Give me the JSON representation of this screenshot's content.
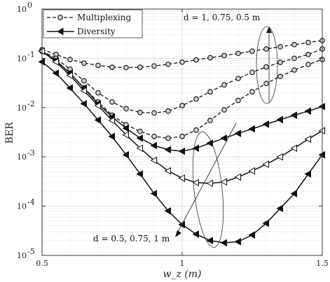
{
  "chart_data": {
    "type": "line",
    "xlabel": "w_z (m)",
    "ylabel": "BER",
    "xlim": [
      0.5,
      1.5
    ],
    "ylim": [
      1e-05,
      1
    ],
    "yscale": "log",
    "grid": true,
    "legend_position": "top-left",
    "x_ticks": [
      "0.5",
      "1",
      "1.5"
    ],
    "y_ticks": [
      {
        "value": 1e-05,
        "base": "10",
        "exp": "-5"
      },
      {
        "value": 0.0001,
        "base": "10",
        "exp": "-4"
      },
      {
        "value": 0.001,
        "base": "10",
        "exp": "-3"
      },
      {
        "value": 0.01,
        "base": "10",
        "exp": "-2"
      },
      {
        "value": 0.1,
        "base": "10",
        "exp": "-1"
      },
      {
        "value": 1,
        "base": "10",
        "exp": "0"
      }
    ],
    "legend": [
      {
        "label": "Multiplexing",
        "style": "dashed",
        "marker": "circle"
      },
      {
        "label": "Diversity",
        "style": "solid",
        "marker": "triangle-left"
      }
    ],
    "annotations": [
      {
        "text": "d = 1, 0.75, 0.5 m"
      },
      {
        "text": "d = 0.5, 0.75, 1 m"
      }
    ],
    "x": [
      0.5,
      0.55,
      0.6,
      0.65,
      0.7,
      0.75,
      0.8,
      0.85,
      0.9,
      0.95,
      1.0,
      1.05,
      1.1,
      1.15,
      1.2,
      1.25,
      1.3,
      1.35,
      1.4,
      1.45,
      1.5
    ],
    "series": [
      {
        "group": "Multiplexing",
        "style": "dashed",
        "marker": "circle",
        "filled": false,
        "d": "1",
        "values": [
          0.15,
          0.12,
          0.095,
          0.08,
          0.072,
          0.066,
          0.065,
          0.066,
          0.07,
          0.076,
          0.084,
          0.093,
          0.103,
          0.114,
          0.126,
          0.14,
          0.155,
          0.172,
          0.19,
          0.21,
          0.23
        ]
      },
      {
        "group": "Multiplexing",
        "style": "dashed",
        "marker": "circle",
        "filled": false,
        "d": "0.75",
        "values": [
          0.14,
          0.1,
          0.06,
          0.035,
          0.02,
          0.013,
          0.0095,
          0.008,
          0.0078,
          0.0085,
          0.011,
          0.015,
          0.021,
          0.029,
          0.039,
          0.052,
          0.067,
          0.083,
          0.1,
          0.12,
          0.155
        ]
      },
      {
        "group": "Multiplexing",
        "style": "dashed",
        "marker": "circle",
        "filled": false,
        "d": "0.5",
        "values": [
          0.14,
          0.09,
          0.05,
          0.025,
          0.013,
          0.007,
          0.0045,
          0.0033,
          0.0026,
          0.0024,
          0.0026,
          0.0035,
          0.0055,
          0.009,
          0.014,
          0.021,
          0.031,
          0.043,
          0.058,
          0.075,
          0.095
        ]
      },
      {
        "group": "Diversity",
        "style": "solid",
        "marker": "triangle-left",
        "filled": true,
        "d": "1",
        "values": [
          0.14,
          0.09,
          0.05,
          0.025,
          0.012,
          0.0065,
          0.0038,
          0.0024,
          0.0017,
          0.0014,
          0.0013,
          0.0015,
          0.0019,
          0.0024,
          0.003,
          0.0037,
          0.0046,
          0.0057,
          0.007,
          0.0085,
          0.0105
        ]
      },
      {
        "group": "Diversity",
        "style": "solid",
        "marker": "triangle-left",
        "filled": false,
        "d": "0.75",
        "values": [
          0.14,
          0.085,
          0.045,
          0.022,
          0.011,
          0.0055,
          0.0028,
          0.0015,
          0.00085,
          0.00052,
          0.00037,
          0.0003,
          0.00029,
          0.00031,
          0.00039,
          0.00052,
          0.00071,
          0.001,
          0.0015,
          0.0023,
          0.0034
        ]
      },
      {
        "group": "Diversity",
        "style": "solid",
        "marker": "triangle-left",
        "filled": true,
        "d": "0.5",
        "values": [
          0.085,
          0.05,
          0.025,
          0.012,
          0.0056,
          0.0026,
          0.0011,
          0.00045,
          0.00018,
          8e-05,
          4.2e-05,
          2.7e-05,
          2e-05,
          1.8e-05,
          1.9e-05,
          2.6e-05,
          4.5e-05,
          9e-05,
          0.00018,
          0.00045,
          0.0011
        ]
      }
    ]
  }
}
